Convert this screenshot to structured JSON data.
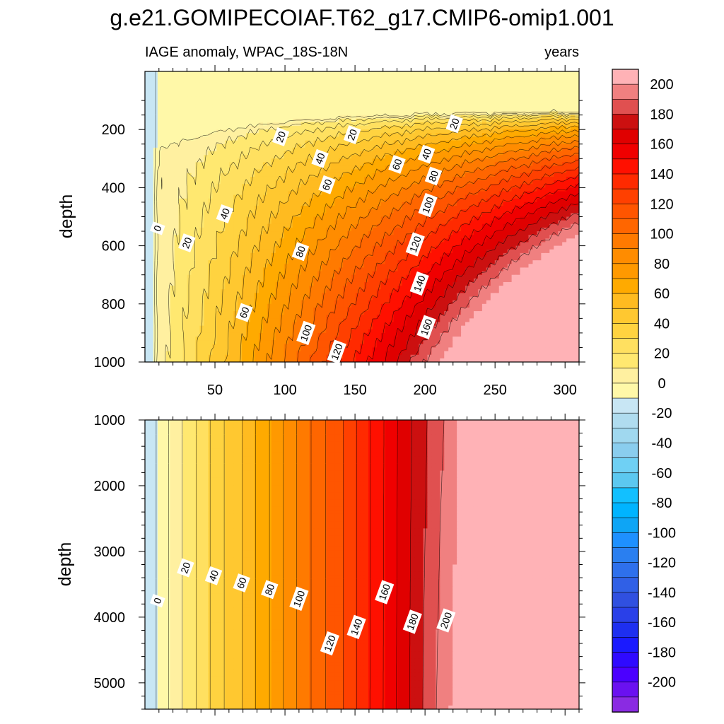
{
  "figure": {
    "title": "g.e21.GOMIPECOIAF.T62_g17.CMIP6-omip1.001"
  },
  "chart_data": [
    {
      "type": "contour",
      "panel": "upper",
      "left_string": "IAGE anomaly, WPAC_18S-18N",
      "right_string": "years",
      "xlabel": "",
      "ylabel": "depth",
      "xlim": [
        0,
        310
      ],
      "ylim": [
        0,
        1000
      ],
      "y_reversed": true,
      "x_ticks": [
        50,
        100,
        150,
        200,
        250,
        300
      ],
      "x_tick_labels": [
        "50",
        "100",
        "150",
        "200",
        "250",
        "300"
      ],
      "y_ticks": [
        200,
        400,
        600,
        800,
        1000
      ],
      "y_tick_labels": [
        "200",
        "400",
        "600",
        "800",
        "1000"
      ],
      "contour_interval": 10,
      "contour_labels": [
        {
          "text": "0",
          "x": 9,
          "y": 540
        },
        {
          "text": "20",
          "x": 30,
          "y": 590
        },
        {
          "text": "20",
          "x": 97,
          "y": 225
        },
        {
          "text": "20",
          "x": 148,
          "y": 218
        },
        {
          "text": "20",
          "x": 221,
          "y": 180
        },
        {
          "text": "40",
          "x": 57,
          "y": 490
        },
        {
          "text": "40",
          "x": 125,
          "y": 300
        },
        {
          "text": "40",
          "x": 201,
          "y": 285
        },
        {
          "text": "60",
          "x": 71,
          "y": 830
        },
        {
          "text": "60",
          "x": 130,
          "y": 390
        },
        {
          "text": "60",
          "x": 180,
          "y": 320
        },
        {
          "text": "80",
          "x": 111,
          "y": 620
        },
        {
          "text": "80",
          "x": 206,
          "y": 360
        },
        {
          "text": "100",
          "x": 115,
          "y": 900
        },
        {
          "text": "100",
          "x": 202,
          "y": 460
        },
        {
          "text": "120",
          "x": 137,
          "y": 965
        },
        {
          "text": "120",
          "x": 193,
          "y": 595
        },
        {
          "text": "140",
          "x": 196,
          "y": 730
        },
        {
          "text": "160",
          "x": 201,
          "y": 880
        }
      ]
    },
    {
      "type": "contour",
      "panel": "lower",
      "xlabel": "",
      "ylabel": "depth",
      "xlim": [
        0,
        310
      ],
      "ylim": [
        1000,
        5400
      ],
      "y_reversed": true,
      "x_tick_labels_shown": false,
      "y_ticks": [
        1000,
        2000,
        3000,
        4000,
        5000
      ],
      "y_tick_labels": [
        "1000",
        "2000",
        "3000",
        "4000",
        "5000"
      ],
      "contour_interval": 10,
      "contour_labels": [
        {
          "text": "0",
          "x": 9,
          "y": 3750
        },
        {
          "text": "20",
          "x": 29,
          "y": 3250
        },
        {
          "text": "40",
          "x": 49,
          "y": 3370
        },
        {
          "text": "60",
          "x": 69,
          "y": 3480
        },
        {
          "text": "80",
          "x": 89,
          "y": 3580
        },
        {
          "text": "100",
          "x": 110,
          "y": 3720
        },
        {
          "text": "120",
          "x": 132,
          "y": 4400
        },
        {
          "text": "140",
          "x": 151,
          "y": 4150
        },
        {
          "text": "160",
          "x": 171,
          "y": 3620
        },
        {
          "text": "180",
          "x": 191,
          "y": 4070
        },
        {
          "text": "200",
          "x": 215,
          "y": 4050
        }
      ]
    }
  ],
  "colorbar": {
    "min": -210,
    "max": 210,
    "step": 20,
    "boundaries": [
      -210,
      -200,
      -190,
      -180,
      -170,
      -160,
      -150,
      -140,
      -130,
      -120,
      -110,
      -100,
      -90,
      -80,
      -70,
      -60,
      -50,
      -40,
      -30,
      -20,
      -10,
      0,
      10,
      20,
      30,
      40,
      50,
      60,
      70,
      80,
      90,
      100,
      110,
      120,
      130,
      140,
      150,
      160,
      170,
      180,
      190,
      200,
      210
    ],
    "labels": [
      "200",
      "180",
      "160",
      "140",
      "120",
      "100",
      "80",
      "60",
      "40",
      "20",
      "0",
      "-20",
      "-40",
      "-60",
      "-80",
      "-100",
      "-120",
      "-140",
      "-160",
      "-180",
      "-200"
    ],
    "colors": [
      "#8a2be2",
      "#6a11f0",
      "#4b00ff",
      "#2f0aff",
      "#1a1aff",
      "#1e2ff0",
      "#2a40e8",
      "#3050e0",
      "#3060e6",
      "#2e70ec",
      "#2a7ff0",
      "#1e90ff",
      "#0ea5f5",
      "#00b4ff",
      "#12c0ff",
      "#5cc8f0",
      "#6fd0f4",
      "#8acdee",
      "#a0d8ef",
      "#b0dcef",
      "#c8e6f4",
      "#fff8a8",
      "#fff0a0",
      "#ffe870",
      "#ffe060",
      "#ffd340",
      "#ffc830",
      "#ffbb20",
      "#ffaa00",
      "#ff9900",
      "#ff8c00",
      "#ff7a00",
      "#ff6600",
      "#ff5500",
      "#ff4000",
      "#ff2a00",
      "#ff1000",
      "#f00000",
      "#e00000",
      "#cc1010",
      "#e05050",
      "#f08080",
      "#ffb2b6"
    ]
  }
}
